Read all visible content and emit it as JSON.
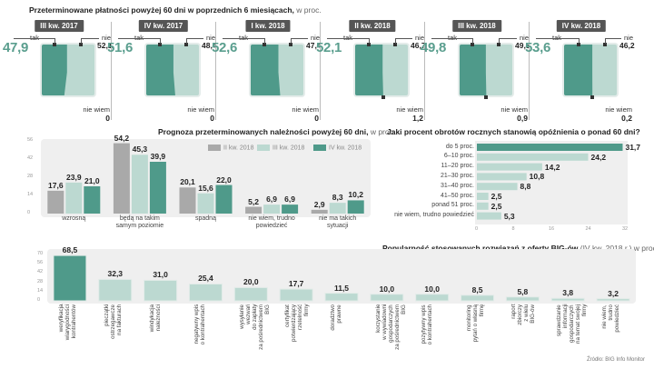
{
  "section1": {
    "title": "Przeterminowane płatności powyżej 60 dni w poprzednich 6 miesiącach,",
    "title_unit": " w proc.",
    "tak_label": "tak",
    "nie_label": "nie",
    "nie_wiem_label": "nie wiem",
    "cards": [
      {
        "quarter": "III kw. 2017",
        "tak": "47,9",
        "nie": "52,1",
        "nie_wiem": "0"
      },
      {
        "quarter": "IV kw. 2017",
        "tak": "51,6",
        "nie": "48,4",
        "nie_wiem": "0"
      },
      {
        "quarter": "I kw. 2018",
        "tak": "52,6",
        "nie": "47,4",
        "nie_wiem": "0"
      },
      {
        "quarter": "II kw. 2018",
        "tak": "52,1",
        "nie": "46,7",
        "nie_wiem": "1,2"
      },
      {
        "quarter": "III kw. 2018",
        "tak": "49,8",
        "nie": "49,3",
        "nie_wiem": "0,9"
      },
      {
        "quarter": "IV kw. 2018",
        "tak": "53,6",
        "nie": "46,2",
        "nie_wiem": "0,2"
      }
    ]
  },
  "colors": {
    "dark_teal": "#4f9a8a",
    "light_teal": "#bcd9d1",
    "grey": "#a9a9a9",
    "panel_bg": "#efefef",
    "label_bg": "#555555"
  },
  "chart_data": [
    {
      "type": "bar",
      "title": "Prognoza przeterminowanych należności powyżej 60 dni,",
      "title_unit": " w proc.",
      "categories": [
        "wzrosną",
        "będą na takim samym poziomie",
        "spadną",
        "nie wiem, trudno powiedzieć",
        "nie ma takich sytuacji"
      ],
      "category_lines": [
        [
          "wzrosną"
        ],
        [
          "będą na takim",
          "samym poziomie"
        ],
        [
          "spadną"
        ],
        [
          "nie wiem, trudno",
          "powiedzieć"
        ],
        [
          "nie ma takich",
          "sytuacji"
        ]
      ],
      "series": [
        {
          "name": "II kw. 2018",
          "color": "#a9a9a9",
          "values": [
            17.6,
            54.2,
            20.1,
            5.2,
            2.9
          ],
          "labels": [
            "17,6",
            "54,2",
            "20,1",
            "5,2",
            "2,9"
          ]
        },
        {
          "name": "III kw. 2018",
          "color": "#bcd9d1",
          "values": [
            23.9,
            45.3,
            15.6,
            6.9,
            8.3
          ],
          "labels": [
            "23,9",
            "45,3",
            "15,6",
            "6,9",
            "8,3"
          ]
        },
        {
          "name": "IV kw. 2018",
          "color": "#4f9a8a",
          "values": [
            21.0,
            39.9,
            22.0,
            6.9,
            10.2
          ],
          "labels": [
            "21,0",
            "39,9",
            "22,0",
            "6,9",
            "10,2"
          ]
        }
      ],
      "yticks": [
        "0",
        "14",
        "28",
        "42",
        "56"
      ],
      "ylim": [
        0,
        56
      ],
      "legend": "top-right",
      "xlabel": "",
      "ylabel": ""
    },
    {
      "type": "bar",
      "orientation": "horizontal",
      "title": "Jaki procent obrotów rocznych stanowią opóźnienia o ponad 60 dni?",
      "categories": [
        "do 5 proc.",
        "6–10 proc.",
        "11–20 proc.",
        "21–30 proc.",
        "31–40 proc.",
        "41–50 proc.",
        "ponad 51 proc.",
        "nie wiem, trudno powiedzieć"
      ],
      "values": [
        31.7,
        24.2,
        14.2,
        10.8,
        8.8,
        2.5,
        2.5,
        5.3
      ],
      "labels": [
        "31,7",
        "24,2",
        "14,2",
        "10,8",
        "8,8",
        "2,5",
        "2,5",
        "5,3"
      ],
      "highlight_index": 0,
      "xticks": [
        "0",
        "8",
        "16",
        "24",
        "32"
      ],
      "xlim": [
        0,
        32
      ],
      "xlabel": "",
      "ylabel": ""
    },
    {
      "type": "bar",
      "title": "Popularność stosowanych rozwiązań z oferty BIG-ów",
      "title_unit": " (IV kw. 2018 r.),w  proc.",
      "categories": [
        "weryfikacja\nwiarygodności\nkontrahentów",
        "pieczątki\nostrzegawcze\nna fakturach",
        "windykacja\nnależności",
        "negatywny wpis\no kontrahentach",
        "wysyłanie\nwezwań\ndo zapłaty\nza pośrednictwem\nBIG",
        "certyfikat\npotwierdzający\nrzetelność\nfirmy",
        "doradztwo\nprawne",
        "korzystanie\nw wywiadowni\ngospodarczych\nza pośrednictwem\nBIG",
        "pozytywny wpis\no kontrahentach",
        "monitoring\npytań o własną\nfirmę",
        "raport\nzbiorczy\nz wielu\nBIG-ów",
        "sprawdzanie\ninformacji\ngospodarczych\nna temat swojej\nfirmy",
        "nie wiem,\ntrudno\npowiedzieć"
      ],
      "values": [
        68.5,
        32.3,
        31.0,
        25.4,
        20.0,
        17.7,
        11.5,
        10.0,
        10.0,
        8.5,
        5.8,
        3.8,
        3.2
      ],
      "labels": [
        "68,5",
        "32,3",
        "31,0",
        "25,4",
        "20,0",
        "17,7",
        "11,5",
        "10,0",
        "10,0",
        "8,5",
        "5,8",
        "3,8",
        "3,2"
      ],
      "highlight_index": 0,
      "yticks": [
        "0",
        "14",
        "28",
        "42",
        "56",
        "70"
      ],
      "ylim": [
        0,
        70
      ],
      "xlabel": "",
      "ylabel": ""
    }
  ],
  "source": "Źródło: BIG Info Monitor"
}
